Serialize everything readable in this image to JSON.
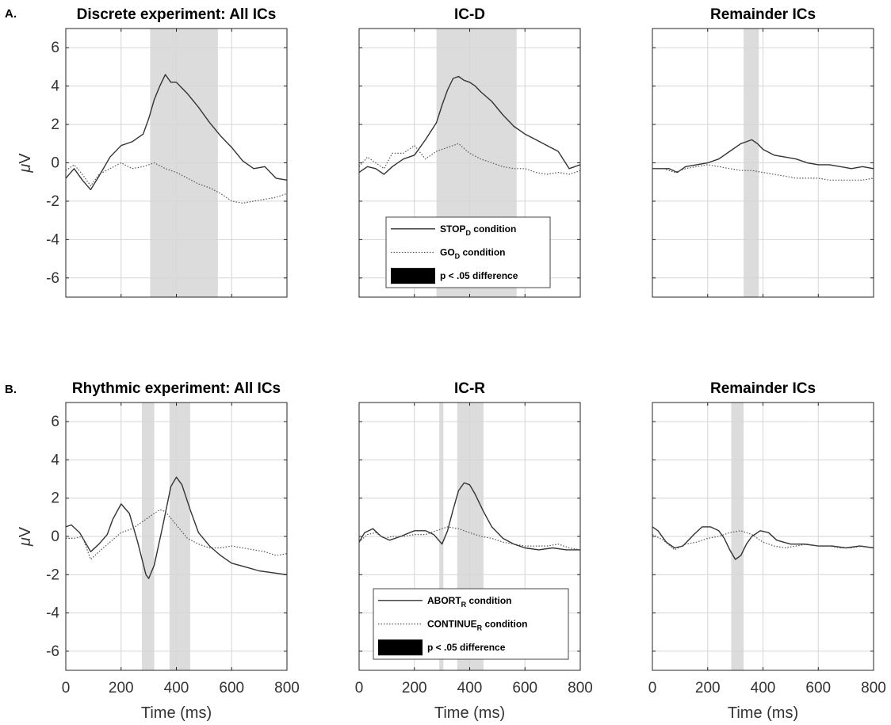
{
  "figure": {
    "row_letters": [
      "A.",
      "B."
    ],
    "y_unit_symbol": "μ",
    "y_unit": "V",
    "x_label": "Time (ms)",
    "legend_a": {
      "items": [
        {
          "style": "solid",
          "base": "STOP",
          "sub": "D",
          "suffix": " condition"
        },
        {
          "style": "dotted",
          "base": "GO",
          "sub": "D",
          "suffix": " condition"
        },
        {
          "style": "patch",
          "base": "p < .05 difference",
          "sub": "",
          "suffix": ""
        }
      ]
    },
    "legend_b": {
      "items": [
        {
          "style": "solid",
          "base": "ABORT",
          "sub": "R",
          "suffix": " condition"
        },
        {
          "style": "dotted",
          "base": "CONTINUE",
          "sub": "R",
          "suffix": " condition"
        },
        {
          "style": "patch",
          "base": "p < .05 difference",
          "sub": "",
          "suffix": ""
        }
      ]
    },
    "colors": {
      "line": "#333333",
      "dotted": "#555555",
      "shade": "#dcdcdc",
      "grid": "#d6d6d6",
      "axis": "#262626"
    }
  },
  "chart_data": [
    {
      "type": "line",
      "title": "Discrete experiment: All ICs",
      "xlabel": "",
      "ylabel": "μV",
      "xlim": [
        0,
        800
      ],
      "ylim": [
        -7,
        7
      ],
      "xticks": [
        0,
        200,
        400,
        600,
        800
      ],
      "yticks": [
        -6,
        -4,
        -2,
        0,
        2,
        4,
        6
      ],
      "grid": true,
      "sig_intervals": [
        [
          305,
          550
        ]
      ],
      "series": [
        {
          "name": "STOP_D condition",
          "style": "solid",
          "x": [
            0,
            30,
            60,
            90,
            120,
            160,
            200,
            240,
            280,
            300,
            320,
            340,
            360,
            380,
            400,
            420,
            440,
            480,
            520,
            560,
            600,
            640,
            680,
            720,
            760,
            800
          ],
          "y": [
            -0.8,
            -0.3,
            -0.9,
            -1.4,
            -0.7,
            0.3,
            0.9,
            1.1,
            1.5,
            2.3,
            3.3,
            4.0,
            4.6,
            4.2,
            4.2,
            3.9,
            3.6,
            2.9,
            2.1,
            1.4,
            0.8,
            0.1,
            -0.3,
            -0.2,
            -0.8,
            -0.9
          ]
        },
        {
          "name": "GO_D condition",
          "style": "dotted",
          "x": [
            0,
            30,
            60,
            90,
            120,
            160,
            200,
            240,
            280,
            320,
            360,
            400,
            440,
            480,
            520,
            560,
            600,
            640,
            680,
            720,
            760,
            800
          ],
          "y": [
            -0.4,
            -0.1,
            -0.6,
            -1.2,
            -0.6,
            -0.3,
            0.0,
            -0.3,
            -0.2,
            0.0,
            -0.3,
            -0.5,
            -0.8,
            -1.1,
            -1.3,
            -1.6,
            -2.0,
            -2.1,
            -2.0,
            -1.9,
            -1.8,
            -1.6
          ]
        }
      ]
    },
    {
      "type": "line",
      "title": "IC-D",
      "xlabel": "",
      "ylabel": "",
      "xlim": [
        0,
        800
      ],
      "ylim": [
        -7,
        7
      ],
      "xticks": [
        0,
        200,
        400,
        600,
        800
      ],
      "yticks": [
        -6,
        -4,
        -2,
        0,
        2,
        4,
        6
      ],
      "grid": true,
      "sig_intervals": [
        [
          280,
          570
        ]
      ],
      "series": [
        {
          "name": "STOP_D condition",
          "style": "solid",
          "x": [
            0,
            30,
            60,
            90,
            120,
            160,
            200,
            240,
            280,
            300,
            320,
            340,
            360,
            380,
            400,
            420,
            440,
            480,
            520,
            560,
            600,
            640,
            680,
            720,
            760,
            800
          ],
          "y": [
            -0.5,
            -0.2,
            -0.3,
            -0.6,
            -0.2,
            0.2,
            0.4,
            1.2,
            2.1,
            3.0,
            3.8,
            4.4,
            4.5,
            4.3,
            4.2,
            4.0,
            3.7,
            3.2,
            2.5,
            1.9,
            1.5,
            1.2,
            0.9,
            0.6,
            -0.3,
            -0.1
          ]
        },
        {
          "name": "GO_D condition",
          "style": "dotted",
          "x": [
            0,
            30,
            60,
            90,
            120,
            160,
            200,
            240,
            280,
            320,
            360,
            400,
            440,
            480,
            520,
            560,
            600,
            640,
            680,
            720,
            760,
            800
          ],
          "y": [
            -0.2,
            0.3,
            0.0,
            -0.3,
            0.5,
            0.5,
            0.9,
            0.2,
            0.6,
            0.8,
            1.0,
            0.5,
            0.2,
            0.0,
            -0.2,
            -0.3,
            -0.3,
            -0.5,
            -0.6,
            -0.5,
            -0.6,
            -0.4
          ]
        }
      ]
    },
    {
      "type": "line",
      "title": "Remainder ICs",
      "xlabel": "",
      "ylabel": "",
      "xlim": [
        0,
        800
      ],
      "ylim": [
        -7,
        7
      ],
      "xticks": [
        0,
        200,
        400,
        600,
        800
      ],
      "yticks": [
        -6,
        -4,
        -2,
        0,
        2,
        4,
        6
      ],
      "grid": true,
      "sig_intervals": [
        [
          330,
          385
        ]
      ],
      "series": [
        {
          "name": "STOP_D condition",
          "style": "solid",
          "x": [
            0,
            30,
            60,
            90,
            120,
            160,
            200,
            240,
            280,
            320,
            340,
            360,
            380,
            400,
            440,
            480,
            520,
            560,
            600,
            640,
            680,
            720,
            760,
            800
          ],
          "y": [
            -0.3,
            -0.3,
            -0.3,
            -0.5,
            -0.2,
            -0.1,
            0.0,
            0.2,
            0.6,
            1.0,
            1.1,
            1.2,
            1.0,
            0.7,
            0.4,
            0.3,
            0.2,
            0.0,
            -0.1,
            -0.1,
            -0.2,
            -0.3,
            -0.2,
            -0.3
          ]
        },
        {
          "name": "GO_D condition",
          "style": "dotted",
          "x": [
            0,
            40,
            80,
            120,
            160,
            200,
            240,
            280,
            320,
            360,
            400,
            440,
            480,
            520,
            560,
            600,
            640,
            680,
            720,
            760,
            800
          ],
          "y": [
            -0.3,
            -0.3,
            -0.5,
            -0.3,
            -0.2,
            -0.1,
            -0.2,
            -0.3,
            -0.4,
            -0.4,
            -0.5,
            -0.6,
            -0.7,
            -0.8,
            -0.8,
            -0.8,
            -0.9,
            -0.9,
            -0.9,
            -0.9,
            -0.8
          ]
        }
      ]
    },
    {
      "type": "line",
      "title": "Rhythmic experiment: All ICs",
      "xlabel": "Time (ms)",
      "ylabel": "μV",
      "xlim": [
        0,
        800
      ],
      "ylim": [
        -7,
        7
      ],
      "xticks": [
        0,
        200,
        400,
        600,
        800
      ],
      "yticks": [
        -6,
        -4,
        -2,
        0,
        2,
        4,
        6
      ],
      "grid": true,
      "sig_intervals": [
        [
          275,
          320
        ],
        [
          375,
          450
        ]
      ],
      "series": [
        {
          "name": "ABORT_R condition",
          "style": "solid",
          "x": [
            0,
            20,
            50,
            90,
            120,
            150,
            170,
            200,
            230,
            260,
            290,
            300,
            320,
            350,
            380,
            400,
            420,
            450,
            480,
            520,
            560,
            600,
            650,
            700,
            750,
            800
          ],
          "y": [
            0.5,
            0.6,
            0.2,
            -0.8,
            -0.4,
            0.1,
            0.9,
            1.7,
            1.2,
            -0.3,
            -2.0,
            -2.2,
            -1.5,
            0.5,
            2.6,
            3.1,
            2.7,
            1.4,
            0.2,
            -0.5,
            -1.0,
            -1.4,
            -1.6,
            -1.8,
            -1.9,
            -2.0
          ]
        },
        {
          "name": "CONTINUE_R condition",
          "style": "dotted",
          "x": [
            0,
            30,
            60,
            90,
            120,
            160,
            200,
            240,
            280,
            320,
            340,
            360,
            400,
            440,
            480,
            520,
            560,
            600,
            640,
            680,
            720,
            760,
            800
          ],
          "y": [
            -0.1,
            -0.1,
            0.0,
            -1.2,
            -0.8,
            -0.3,
            0.2,
            0.4,
            0.8,
            1.2,
            1.4,
            1.3,
            0.6,
            -0.1,
            -0.4,
            -0.6,
            -0.6,
            -0.5,
            -0.6,
            -0.7,
            -0.8,
            -1.0,
            -0.9
          ]
        }
      ]
    },
    {
      "type": "line",
      "title": "IC-R",
      "xlabel": "Time (ms)",
      "ylabel": "",
      "xlim": [
        0,
        800
      ],
      "ylim": [
        -7,
        7
      ],
      "xticks": [
        0,
        200,
        400,
        600,
        800
      ],
      "yticks": [
        -6,
        -4,
        -2,
        0,
        2,
        4,
        6
      ],
      "grid": true,
      "sig_intervals": [
        [
          290,
          305
        ],
        [
          355,
          450
        ]
      ],
      "series": [
        {
          "name": "ABORT_R condition",
          "style": "solid",
          "x": [
            0,
            20,
            50,
            80,
            110,
            150,
            200,
            240,
            270,
            300,
            320,
            340,
            360,
            380,
            400,
            420,
            450,
            480,
            520,
            560,
            600,
            650,
            700,
            750,
            800
          ],
          "y": [
            -0.3,
            0.2,
            0.4,
            0.0,
            -0.2,
            0.0,
            0.3,
            0.3,
            0.1,
            -0.4,
            0.3,
            1.4,
            2.4,
            2.8,
            2.7,
            2.2,
            1.3,
            0.5,
            -0.1,
            -0.4,
            -0.6,
            -0.7,
            -0.6,
            -0.7,
            -0.7
          ]
        },
        {
          "name": "CONTINUE_R condition",
          "style": "dotted",
          "x": [
            0,
            30,
            60,
            90,
            120,
            160,
            200,
            240,
            280,
            320,
            360,
            400,
            440,
            480,
            520,
            560,
            600,
            640,
            680,
            720,
            760,
            800
          ],
          "y": [
            -0.3,
            0.1,
            0.2,
            -0.1,
            0.0,
            0.0,
            0.1,
            0.1,
            0.3,
            0.5,
            0.4,
            0.2,
            0.0,
            -0.1,
            -0.3,
            -0.4,
            -0.5,
            -0.5,
            -0.5,
            -0.4,
            -0.6,
            -0.7
          ]
        }
      ]
    },
    {
      "type": "line",
      "title": "Remainder ICs",
      "xlabel": "Time (ms)",
      "ylabel": "",
      "xlim": [
        0,
        800
      ],
      "ylim": [
        -7,
        7
      ],
      "xticks": [
        0,
        200,
        400,
        600,
        800
      ],
      "yticks": [
        -6,
        -4,
        -2,
        0,
        2,
        4,
        6
      ],
      "grid": true,
      "sig_intervals": [
        [
          285,
          330
        ]
      ],
      "series": [
        {
          "name": "ABORT_R condition",
          "style": "solid",
          "x": [
            0,
            20,
            50,
            80,
            110,
            150,
            180,
            210,
            240,
            260,
            280,
            300,
            320,
            340,
            360,
            390,
            420,
            450,
            500,
            550,
            600,
            650,
            700,
            750,
            800
          ],
          "y": [
            0.5,
            0.3,
            -0.3,
            -0.6,
            -0.5,
            0.1,
            0.5,
            0.5,
            0.3,
            -0.1,
            -0.7,
            -1.2,
            -1.0,
            -0.4,
            0.0,
            0.3,
            0.2,
            -0.2,
            -0.4,
            -0.4,
            -0.5,
            -0.5,
            -0.6,
            -0.5,
            -0.6
          ]
        },
        {
          "name": "CONTINUE_R condition",
          "style": "dotted",
          "x": [
            0,
            40,
            80,
            120,
            160,
            200,
            240,
            280,
            320,
            360,
            400,
            440,
            480,
            520,
            560,
            600,
            640,
            680,
            720,
            760,
            800
          ],
          "y": [
            0.1,
            -0.2,
            -0.7,
            -0.4,
            -0.3,
            -0.1,
            0.0,
            0.2,
            0.3,
            0.1,
            -0.3,
            -0.5,
            -0.6,
            -0.5,
            -0.4,
            -0.5,
            -0.5,
            -0.6,
            -0.6,
            -0.5,
            -0.6
          ]
        }
      ]
    }
  ]
}
